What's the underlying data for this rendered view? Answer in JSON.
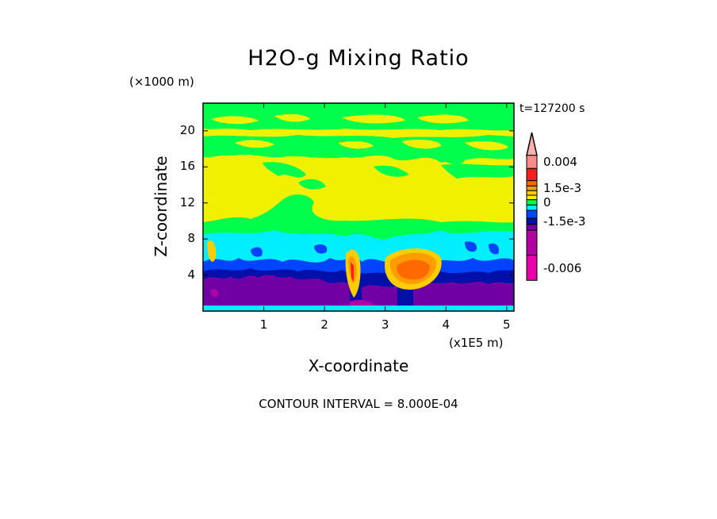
{
  "chart_data": {
    "type": "heatmap",
    "subtype": "filled-contour",
    "title": "H2O-g Mixing Ratio",
    "xlabel": "X-coordinate",
    "ylabel": "Z-coordinate",
    "x_unit": "(x1E5 m)",
    "y_unit": "(×1000 m)",
    "time_label": "t=127200 s",
    "xlim": [
      0,
      5.12
    ],
    "ylim": [
      0,
      23.07
    ],
    "xticks": [
      {
        "v": 1,
        "label": "1"
      },
      {
        "v": 2,
        "label": "2"
      },
      {
        "v": 3,
        "label": "3"
      },
      {
        "v": 4,
        "label": "4"
      },
      {
        "v": 5,
        "label": "5"
      }
    ],
    "yticks": [
      {
        "v": 4,
        "label": "4"
      },
      {
        "v": 8,
        "label": "8"
      },
      {
        "v": 12,
        "label": "12"
      },
      {
        "v": 16,
        "label": "16"
      },
      {
        "v": 20,
        "label": "20"
      }
    ],
    "contour_interval": "CONTOUR INTERVAL = 8.000E-04",
    "colorbar": {
      "colors": [
        "#ff8a8a",
        "#ff1c1c",
        "#ff6a00",
        "#ff9d00",
        "#ffcc00",
        "#f0f000",
        "#00ff4c",
        "#00eeff",
        "#0044ff",
        "#0010a8",
        "#7000a4",
        "#b000a4",
        "#e800a8"
      ],
      "extend_top_color": "#ffb0b0",
      "labels": [
        {
          "text": "0.004",
          "level": 0
        },
        {
          "text": "1.5e-3",
          "level": 3
        },
        {
          "text": "0",
          "level": 6
        },
        {
          "text": "-1.5e-3",
          "level": 9
        },
        {
          "text": "-0.006",
          "level": 12
        }
      ]
    }
  }
}
